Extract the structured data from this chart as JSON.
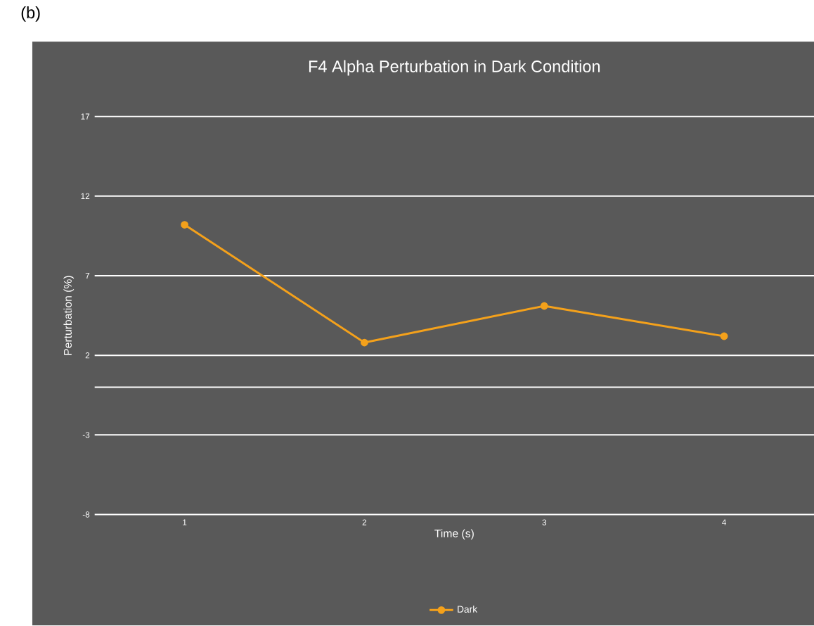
{
  "chart_data": {
    "type": "line",
    "title": "F4 Alpha Perturbation in Dark Condition",
    "xlabel": "Time (s)",
    "ylabel": "Perturbation (%)",
    "categories": [
      "1",
      "2",
      "3",
      "4"
    ],
    "series": [
      {
        "name": "Dark",
        "color": "#f4a11b",
        "values": [
          10.2,
          2.8,
          5.1,
          3.2
        ]
      }
    ],
    "ylim": [
      -8,
      17
    ],
    "yticks": [
      -8,
      -3,
      2,
      7,
      12,
      17
    ],
    "grid": "y",
    "legend": "bottom",
    "marker": "circle",
    "line_style": "solid",
    "ref_lines": [
      {
        "axis": "y",
        "value": 0,
        "color": "#ffffff"
      }
    ],
    "annotations": [
      "(b)"
    ]
  }
}
